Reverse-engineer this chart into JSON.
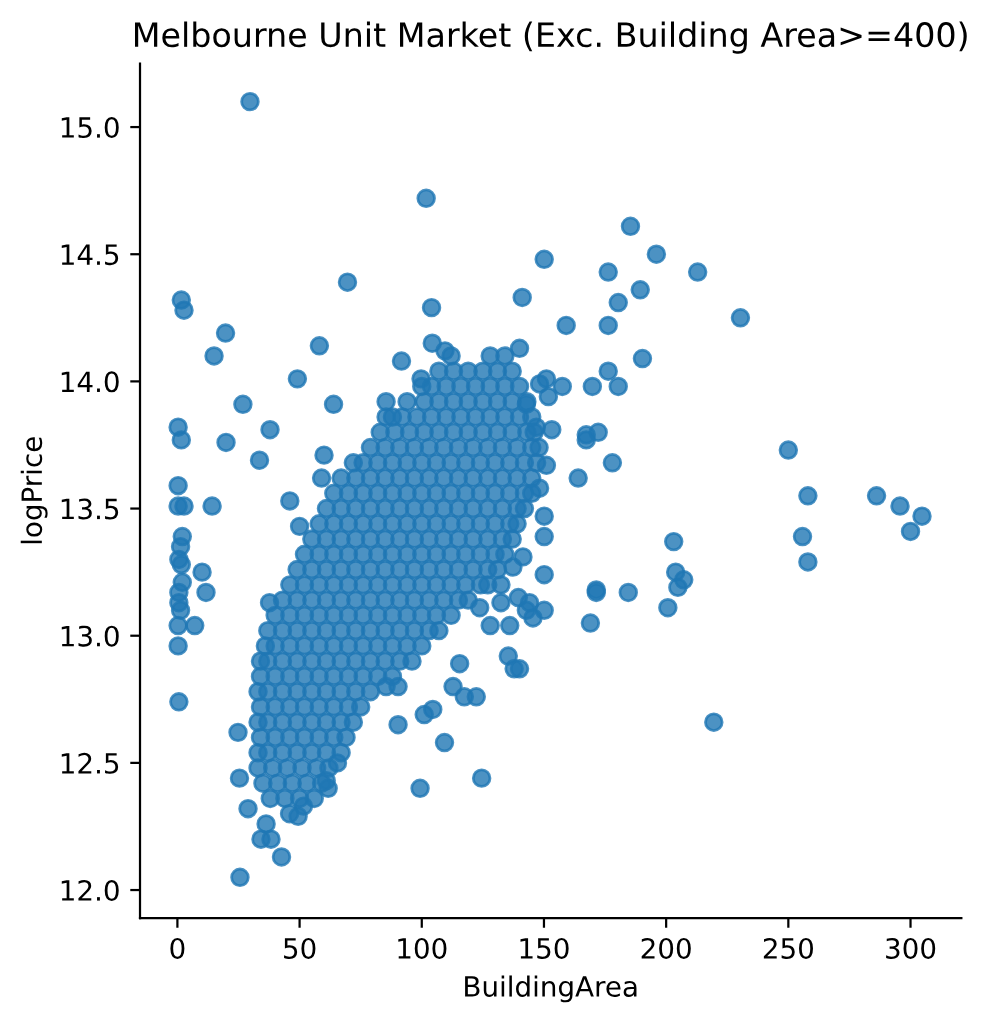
{
  "chart_data": {
    "type": "scatter",
    "title": "Melbourne Unit Market (Exc. Building Area>=400)",
    "xlabel": "BuildingArea",
    "ylabel": "logPrice",
    "color": "#1f77b4",
    "marker": "circle",
    "xlim": [
      -15.3,
      320.8
    ],
    "ylim": [
      11.89,
      15.25
    ],
    "xticks": [
      0,
      50,
      100,
      150,
      200,
      250,
      300
    ],
    "yticks": [
      {
        "value": 12,
        "label": "12.0"
      },
      {
        "value": 12.5,
        "label": "12.5"
      },
      {
        "value": 13,
        "label": "13.0"
      },
      {
        "value": 13.5,
        "label": "13.5"
      },
      {
        "value": 14,
        "label": "14.0"
      },
      {
        "value": 14.5,
        "label": "14.5"
      },
      {
        "value": 15,
        "label": "15.0"
      }
    ],
    "x": [
      29.7,
      101.8,
      69.6,
      1.6,
      2.7,
      150.1,
      141.1,
      104.0,
      19.7,
      15.0,
      58.1,
      49.1,
      26.8,
      63.9,
      0.3,
      1.6,
      19.9,
      37.9,
      33.6,
      60.0,
      59.0,
      0.3,
      14.2,
      46.0,
      91.7,
      99.7,
      104.3,
      109.5,
      85.4,
      85.4,
      185.4,
      196.0,
      212.9,
      176.3,
      189.4,
      180.4,
      159.1,
      176.3,
      230.4,
      140.0,
      190.3,
      176.3,
      151.0,
      148.2,
      151.8,
      157.5,
      169.8,
      180.4,
      142.8,
      146.9,
      153.2,
      167.3,
      167.3,
      172.2,
      178.0,
      164.0,
      250.0,
      258.0,
      286.1,
      295.7,
      304.7,
      300.0,
      255.8,
      258.0,
      203.1,
      203.9,
      207.2,
      204.8,
      200.7,
      171.4,
      171.4,
      184.5,
      169.0,
      219.5,
      150.1,
      150.1,
      150.1,
      150.1,
      140.0,
      144.1,
      145.5,
      148.2,
      151.0,
      0.3,
      2.7,
      2.0,
      1.3,
      0.6,
      1.6,
      2.0,
      0.6,
      0.6,
      1.3,
      0.3,
      0.3,
      0.6,
      10.1,
      11.7,
      7.1,
      24.8,
      25.4,
      28.9,
      25.6,
      42.6,
      36.3,
      34.2,
      38.3,
      45.9,
      49.4,
      51.6,
      61.7,
      60.9,
      65.5,
      90.3,
      99.3,
      109.3,
      124.5,
      101.0,
      104.5,
      122.3,
      112.8,
      117.4,
      85.4,
      90.3,
      115.5,
      123.7,
      132.4,
      128.0,
      136.0,
      135.4,
      137.8,
      139.5,
      142.8,
      141.4,
      137.3,
      132.4,
      50.0,
      37.7,
      38,
      44,
      50,
      56,
      35,
      41,
      47,
      53,
      59,
      33,
      39,
      45,
      51,
      57,
      62,
      33,
      37,
      43,
      49,
      55,
      61,
      67,
      34,
      40,
      46,
      52,
      58,
      64,
      69,
      33,
      37,
      43,
      49,
      55,
      61,
      67,
      72,
      34,
      40,
      46,
      52,
      58,
      64,
      70,
      75,
      33,
      37,
      43,
      49,
      55,
      61,
      67,
      73,
      79,
      34,
      40,
      46,
      52,
      58,
      64,
      70,
      76,
      82,
      88,
      34,
      37,
      43,
      49,
      55,
      61,
      67,
      73,
      79,
      85,
      91,
      96,
      36,
      40,
      46,
      52,
      58,
      64,
      70,
      76,
      82,
      88,
      94,
      100,
      37,
      43,
      49,
      55,
      61,
      67,
      73,
      79,
      85,
      91,
      97,
      103,
      107,
      40,
      46,
      52,
      58,
      64,
      70,
      76,
      82,
      88,
      94,
      100,
      106,
      112,
      43,
      49,
      55,
      61,
      67,
      73,
      79,
      85,
      91,
      97,
      103,
      109,
      115,
      119,
      46,
      52,
      58,
      64,
      70,
      76,
      82,
      88,
      94,
      100,
      106,
      112,
      118,
      124,
      127,
      49,
      55,
      61,
      67,
      73,
      79,
      85,
      91,
      97,
      103,
      109,
      115,
      121,
      127,
      131,
      52,
      58,
      64,
      70,
      76,
      82,
      88,
      94,
      100,
      106,
      112,
      118,
      124,
      130,
      134,
      55,
      61,
      67,
      73,
      79,
      85,
      91,
      97,
      103,
      109,
      115,
      121,
      127,
      133,
      137,
      58,
      64,
      70,
      76,
      82,
      88,
      94,
      100,
      106,
      112,
      118,
      124,
      130,
      136,
      139,
      61,
      67,
      73,
      79,
      85,
      91,
      97,
      103,
      109,
      115,
      121,
      127,
      133,
      139,
      142,
      64,
      70,
      76,
      82,
      88,
      94,
      100,
      106,
      112,
      118,
      124,
      130,
      136,
      142,
      145,
      67,
      73,
      79,
      85,
      91,
      97,
      103,
      109,
      115,
      121,
      127,
      133,
      139,
      145,
      72,
      76,
      82,
      88,
      94,
      100,
      106,
      112,
      118,
      124,
      130,
      136,
      142,
      147,
      79,
      85,
      91,
      97,
      103,
      109,
      115,
      121,
      127,
      133,
      139,
      145,
      148,
      83,
      89,
      95,
      101,
      107,
      113,
      119,
      125,
      131,
      137,
      143,
      146,
      88,
      92,
      98,
      104,
      110,
      116,
      122,
      128,
      134,
      140,
      145,
      94,
      101,
      107,
      113,
      119,
      125,
      131,
      137,
      143,
      100,
      104,
      110,
      116,
      122,
      128,
      134,
      140,
      107,
      113,
      119,
      125,
      131,
      137,
      112,
      128,
      134
    ],
    "values": [
      15.1,
      14.72,
      14.39,
      14.32,
      14.28,
      14.48,
      14.33,
      14.29,
      14.19,
      14.1,
      14.14,
      14.01,
      13.91,
      13.91,
      13.82,
      13.77,
      13.76,
      13.81,
      13.69,
      13.71,
      13.62,
      13.59,
      13.51,
      13.53,
      14.08,
      14.01,
      14.15,
      14.12,
      13.92,
      13.86,
      14.61,
      14.5,
      14.43,
      14.43,
      14.36,
      14.31,
      14.22,
      14.22,
      14.25,
      14.13,
      14.09,
      14.04,
      14.01,
      13.99,
      13.94,
      13.98,
      13.98,
      13.98,
      13.91,
      13.82,
      13.81,
      13.79,
      13.77,
      13.8,
      13.68,
      13.62,
      13.73,
      13.55,
      13.55,
      13.51,
      13.47,
      13.41,
      13.39,
      13.29,
      13.37,
      13.25,
      13.22,
      13.19,
      13.11,
      13.18,
      13.17,
      13.17,
      13.05,
      12.66,
      13.24,
      13.1,
      13.47,
      13.39,
      12.87,
      13.13,
      13.07,
      13.58,
      13.67,
      13.51,
      13.51,
      13.39,
      13.35,
      13.3,
      13.28,
      13.21,
      13.17,
      13.13,
      13.1,
      13.04,
      12.96,
      12.74,
      13.25,
      13.17,
      13.04,
      12.62,
      12.44,
      12.32,
      12.05,
      12.13,
      12.26,
      12.2,
      12.2,
      12.3,
      12.29,
      12.33,
      12.4,
      12.43,
      12.5,
      12.65,
      12.4,
      12.58,
      12.44,
      12.69,
      12.71,
      12.76,
      12.8,
      12.76,
      12.8,
      12.8,
      12.89,
      13.11,
      13.13,
      13.04,
      13.04,
      12.92,
      12.87,
      13.15,
      13.1,
      13.31,
      13.27,
      13.2,
      13.43,
      13.13,
      12.36,
      12.36,
      12.36,
      12.36,
      12.42,
      12.42,
      12.42,
      12.42,
      12.42,
      12.48,
      12.48,
      12.48,
      12.48,
      12.48,
      12.48,
      12.54,
      12.54,
      12.54,
      12.54,
      12.54,
      12.54,
      12.54,
      12.6,
      12.6,
      12.6,
      12.6,
      12.6,
      12.6,
      12.6,
      12.66,
      12.66,
      12.66,
      12.66,
      12.66,
      12.66,
      12.66,
      12.66,
      12.72,
      12.72,
      12.72,
      12.72,
      12.72,
      12.72,
      12.72,
      12.72,
      12.78,
      12.78,
      12.78,
      12.78,
      12.78,
      12.78,
      12.78,
      12.78,
      12.78,
      12.84,
      12.84,
      12.84,
      12.84,
      12.84,
      12.84,
      12.84,
      12.84,
      12.84,
      12.84,
      12.9,
      12.9,
      12.9,
      12.9,
      12.9,
      12.9,
      12.9,
      12.9,
      12.9,
      12.9,
      12.9,
      12.9,
      12.96,
      12.96,
      12.96,
      12.96,
      12.96,
      12.96,
      12.96,
      12.96,
      12.96,
      12.96,
      12.96,
      12.96,
      13.02,
      13.02,
      13.02,
      13.02,
      13.02,
      13.02,
      13.02,
      13.02,
      13.02,
      13.02,
      13.02,
      13.02,
      13.02,
      13.08,
      13.08,
      13.08,
      13.08,
      13.08,
      13.08,
      13.08,
      13.08,
      13.08,
      13.08,
      13.08,
      13.08,
      13.08,
      13.14,
      13.14,
      13.14,
      13.14,
      13.14,
      13.14,
      13.14,
      13.14,
      13.14,
      13.14,
      13.14,
      13.14,
      13.14,
      13.14,
      13.2,
      13.2,
      13.2,
      13.2,
      13.2,
      13.2,
      13.2,
      13.2,
      13.2,
      13.2,
      13.2,
      13.2,
      13.2,
      13.2,
      13.2,
      13.26,
      13.26,
      13.26,
      13.26,
      13.26,
      13.26,
      13.26,
      13.26,
      13.26,
      13.26,
      13.26,
      13.26,
      13.26,
      13.26,
      13.26,
      13.32,
      13.32,
      13.32,
      13.32,
      13.32,
      13.32,
      13.32,
      13.32,
      13.32,
      13.32,
      13.32,
      13.32,
      13.32,
      13.32,
      13.32,
      13.38,
      13.38,
      13.38,
      13.38,
      13.38,
      13.38,
      13.38,
      13.38,
      13.38,
      13.38,
      13.38,
      13.38,
      13.38,
      13.38,
      13.38,
      13.44,
      13.44,
      13.44,
      13.44,
      13.44,
      13.44,
      13.44,
      13.44,
      13.44,
      13.44,
      13.44,
      13.44,
      13.44,
      13.44,
      13.44,
      13.5,
      13.5,
      13.5,
      13.5,
      13.5,
      13.5,
      13.5,
      13.5,
      13.5,
      13.5,
      13.5,
      13.5,
      13.5,
      13.5,
      13.5,
      13.56,
      13.56,
      13.56,
      13.56,
      13.56,
      13.56,
      13.56,
      13.56,
      13.56,
      13.56,
      13.56,
      13.56,
      13.56,
      13.56,
      13.56,
      13.62,
      13.62,
      13.62,
      13.62,
      13.62,
      13.62,
      13.62,
      13.62,
      13.62,
      13.62,
      13.62,
      13.62,
      13.62,
      13.62,
      13.68,
      13.68,
      13.68,
      13.68,
      13.68,
      13.68,
      13.68,
      13.68,
      13.68,
      13.68,
      13.68,
      13.68,
      13.68,
      13.68,
      13.74,
      13.74,
      13.74,
      13.74,
      13.74,
      13.74,
      13.74,
      13.74,
      13.74,
      13.74,
      13.74,
      13.74,
      13.74,
      13.8,
      13.8,
      13.8,
      13.8,
      13.8,
      13.8,
      13.8,
      13.8,
      13.8,
      13.8,
      13.8,
      13.8,
      13.86,
      13.86,
      13.86,
      13.86,
      13.86,
      13.86,
      13.86,
      13.86,
      13.86,
      13.86,
      13.86,
      13.92,
      13.92,
      13.92,
      13.92,
      13.92,
      13.92,
      13.92,
      13.92,
      13.92,
      13.98,
      13.98,
      13.98,
      13.98,
      13.98,
      13.98,
      13.98,
      13.98,
      14.04,
      14.04,
      14.04,
      14.04,
      14.04,
      14.04,
      14.1,
      14.1,
      14.1
    ]
  }
}
